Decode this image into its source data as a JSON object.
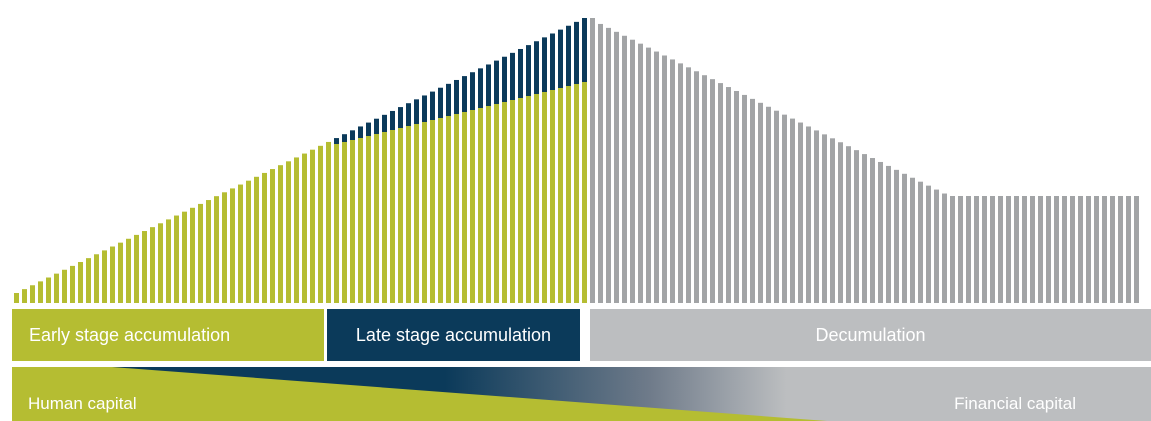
{
  "colors": {
    "green": "#b5bd32",
    "navy": "#0b3a5a",
    "gray": "#a2a4a6",
    "light_gray": "#bcbec0"
  },
  "stages": [
    {
      "id": "early",
      "label": "Early stage accumulation",
      "color": "#b5bd32"
    },
    {
      "id": "late",
      "label": "Late stage accumulation",
      "color": "#0b3a5a"
    },
    {
      "id": "decum",
      "label": "Decumulation",
      "color": "#bcbec0"
    }
  ],
  "capital": {
    "human_label": "Human capital",
    "financial_label": "Financial capital"
  }
}
